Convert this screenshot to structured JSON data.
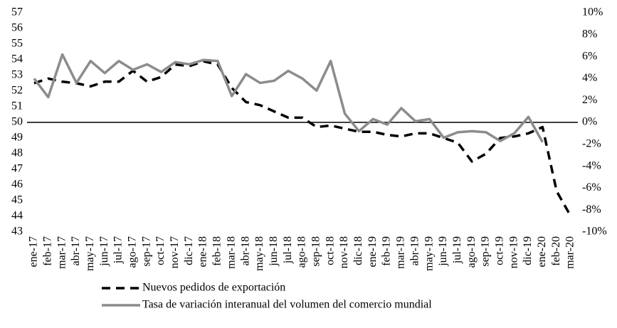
{
  "chart_data": {
    "type": "line",
    "categories": [
      "ene-17",
      "feb-17",
      "mar-17",
      "abr-17",
      "may-17",
      "jun-17",
      "jul-17",
      "ago-17",
      "sep-17",
      "oct-17",
      "nov-17",
      "dic-17",
      "ene-18",
      "feb-18",
      "mar-18",
      "abr-18",
      "may-18",
      "jun-18",
      "jul-18",
      "ago-18",
      "sep-18",
      "oct-18",
      "nov-18",
      "dic-18",
      "ene-19",
      "feb-19",
      "mar-19",
      "abr-19",
      "may-19",
      "jun-19",
      "jul-19",
      "ago-19",
      "sep-19",
      "oct-19",
      "nov-19",
      "dic-19",
      "ene-20",
      "feb-20",
      "mar-20"
    ],
    "series": [
      {
        "name": "Nuevos pedidos de exportación",
        "color": "#000000",
        "dashed": true,
        "values": [
          52.5,
          52.8,
          52.6,
          52.5,
          52.3,
          52.6,
          52.6,
          53.3,
          52.6,
          52.9,
          53.7,
          53.6,
          53.9,
          53.7,
          52.2,
          51.3,
          51.1,
          50.7,
          50.3,
          50.3,
          49.7,
          49.8,
          49.6,
          49.4,
          49.4,
          49.2,
          49.1,
          49.3,
          49.3,
          49.0,
          48.7,
          47.5,
          48.0,
          49.0,
          49.1,
          49.3,
          49.7,
          45.6,
          44.0
        ]
      },
      {
        "name": "Tasa de variación interanual del volumen del comercio mundial",
        "color": "#8c8c8c",
        "axis": "y2",
        "dashed": false,
        "values": [
          4.0,
          2.3,
          6.2,
          3.6,
          5.6,
          4.5,
          5.6,
          4.8,
          5.3,
          4.6,
          5.5,
          5.3,
          5.7,
          5.6,
          2.4,
          4.4,
          3.6,
          3.8,
          4.7,
          4.0,
          2.9,
          5.6,
          0.8,
          -0.8,
          0.3,
          -0.2,
          1.3,
          0.1,
          0.3,
          -1.4,
          -0.9,
          -0.8,
          -0.9,
          -1.7,
          -1.0,
          0.5,
          -1.8,
          null,
          null
        ]
      }
    ],
    "ylim": [
      43,
      57
    ],
    "yticks": [
      43,
      44,
      45,
      46,
      47,
      48,
      49,
      50,
      51,
      52,
      53,
      54,
      55,
      56,
      57
    ],
    "y2lim": [
      -10,
      10
    ],
    "y2ticks": [
      {
        "value": -10,
        "label": "-10%"
      },
      {
        "value": -8,
        "label": "-8%"
      },
      {
        "value": -6,
        "label": "-6%"
      },
      {
        "value": -4,
        "label": "-4%"
      },
      {
        "value": -2,
        "label": "-2%"
      },
      {
        "value": 0,
        "label": "0%"
      },
      {
        "value": 2,
        "label": "2%"
      },
      {
        "value": 4,
        "label": "4%"
      },
      {
        "value": 6,
        "label": "6%"
      },
      {
        "value": 8,
        "label": "8%"
      },
      {
        "value": 10,
        "label": "10%"
      }
    ],
    "reference_line": 50,
    "grid": false,
    "legend": "bottom"
  }
}
